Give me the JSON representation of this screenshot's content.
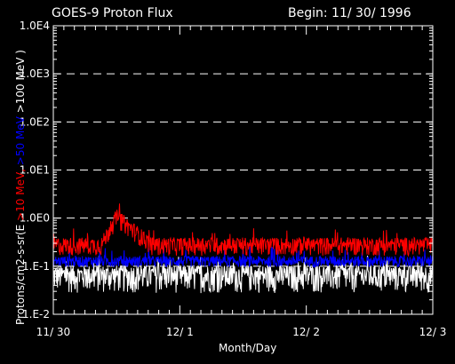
{
  "chart_data": {
    "type": "line",
    "title": "GOES-9 Proton Flux",
    "begin_label": "Begin: 11/ 30/ 1996",
    "xlabel": "Month/Day",
    "ylabel_parts": [
      {
        "text": "Protons/cm2-s-sr(E ",
        "color": "#ffffff"
      },
      {
        "text": ">10 MeV, ",
        "color": "#ff0000"
      },
      {
        "text": ">50 MeV ",
        "color": "#0000ff"
      },
      {
        "text": ">100 MeV )",
        "color": "#ffffff"
      }
    ],
    "y_scale": "log",
    "ylim": [
      0.01,
      10000
    ],
    "y_tick_values": [
      0.01,
      0.1,
      1,
      10,
      100,
      1000,
      10000
    ],
    "y_tick_labels": [
      "1.E-2",
      "1.E-1",
      "1.0E0",
      "1.0E1",
      "1.0E2",
      "1.0E3",
      "1.0E4"
    ],
    "gridlines_at": [
      0.1,
      1,
      10,
      100,
      1000
    ],
    "grid": "dashed horizontal",
    "xlim": [
      0,
      3
    ],
    "x_ticks": [
      0,
      1,
      2,
      3
    ],
    "x_tick_labels": [
      "11/ 30",
      "12/ 1",
      "12/ 2",
      "12/ 3"
    ],
    "series": [
      {
        "name": ">10 MeV",
        "color": "#ff0000",
        "baseline": 0.22,
        "noise_lo": 0.75,
        "noise_hi": 1.8,
        "event": {
          "start": 0.38,
          "peak": 0.5,
          "end": 0.78,
          "peak_value": 0.85
        }
      },
      {
        "name": ">50 MeV",
        "color": "#0000ff",
        "baseline": 0.12,
        "noise_lo": 0.8,
        "noise_hi": 1.35
      },
      {
        "name": ">100 MeV",
        "color": "#ffffff",
        "baseline": 0.055,
        "noise_lo": 0.5,
        "noise_hi": 1.9
      }
    ]
  }
}
